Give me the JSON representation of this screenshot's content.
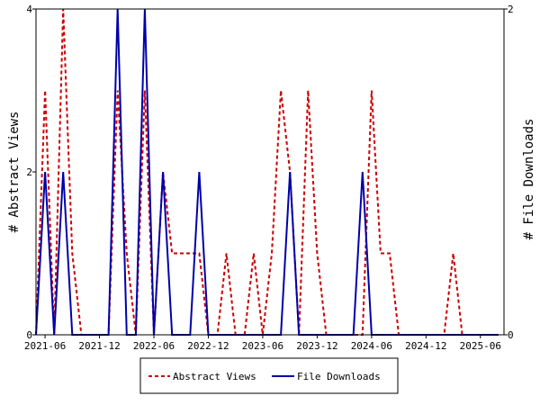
{
  "chart_data": {
    "type": "line",
    "x_dates": [
      "2021-05",
      "2021-06",
      "2021-07",
      "2021-08",
      "2021-09",
      "2021-10",
      "2021-11",
      "2021-12",
      "2022-01",
      "2022-02",
      "2022-03",
      "2022-04",
      "2022-05",
      "2022-06",
      "2022-07",
      "2022-08",
      "2022-09",
      "2022-10",
      "2022-11",
      "2022-12",
      "2023-01",
      "2023-02",
      "2023-03",
      "2023-04",
      "2023-05",
      "2023-06",
      "2023-07",
      "2023-08",
      "2023-09",
      "2023-10",
      "2023-11",
      "2023-12",
      "2024-01",
      "2024-02",
      "2024-03",
      "2024-04",
      "2024-05",
      "2024-06",
      "2024-07",
      "2024-08",
      "2024-09",
      "2024-10",
      "2024-11",
      "2024-12",
      "2025-01",
      "2025-02",
      "2025-03",
      "2025-04",
      "2025-05",
      "2025-06",
      "2025-07",
      "2025-08"
    ],
    "x_ticks": [
      "2021-06",
      "2021-12",
      "2022-06",
      "2022-12",
      "2023-06",
      "2023-12",
      "2024-06",
      "2024-12",
      "2025-06"
    ],
    "series": [
      {
        "name": "Abstract Views",
        "axis": "left",
        "color": "#cc0000",
        "style": "dashed",
        "values": [
          0,
          3,
          0,
          4,
          1,
          0,
          0,
          0,
          0,
          3,
          1,
          0,
          3,
          0,
          2,
          1,
          1,
          1,
          1,
          0,
          0,
          1,
          0,
          0,
          1,
          0,
          1,
          3,
          2,
          0,
          3,
          1,
          0,
          0,
          0,
          0,
          0,
          3,
          1,
          1,
          0,
          0,
          0,
          0,
          0,
          0,
          1,
          0,
          0,
          0,
          0,
          0
        ]
      },
      {
        "name": "File Downloads",
        "axis": "right",
        "color": "#0000aa",
        "style": "solid",
        "values": [
          0,
          1,
          0,
          1,
          0,
          0,
          0,
          0,
          0,
          2,
          0,
          0,
          2,
          0,
          1,
          0,
          0,
          0,
          1,
          0,
          0,
          0,
          0,
          0,
          0,
          0,
          0,
          0,
          1,
          0,
          0,
          0,
          0,
          0,
          0,
          0,
          1,
          0,
          0,
          0,
          0,
          0,
          0,
          0,
          0,
          0,
          0,
          0,
          0,
          0,
          0,
          0
        ]
      }
    ],
    "y_left": {
      "label": "# Abstract Views",
      "range": [
        0,
        4
      ],
      "ticks": [
        "0",
        "2",
        "4"
      ]
    },
    "y_right": {
      "label": "# File Downloads",
      "range": [
        0,
        2
      ],
      "ticks": [
        "0",
        "2"
      ]
    },
    "grid": false,
    "legend_position": "bottom",
    "legend": [
      {
        "label": "Abstract Views",
        "color": "#cc0000",
        "style": "dashed"
      },
      {
        "label": "File Downloads",
        "color": "#0000aa",
        "style": "solid"
      }
    ]
  }
}
